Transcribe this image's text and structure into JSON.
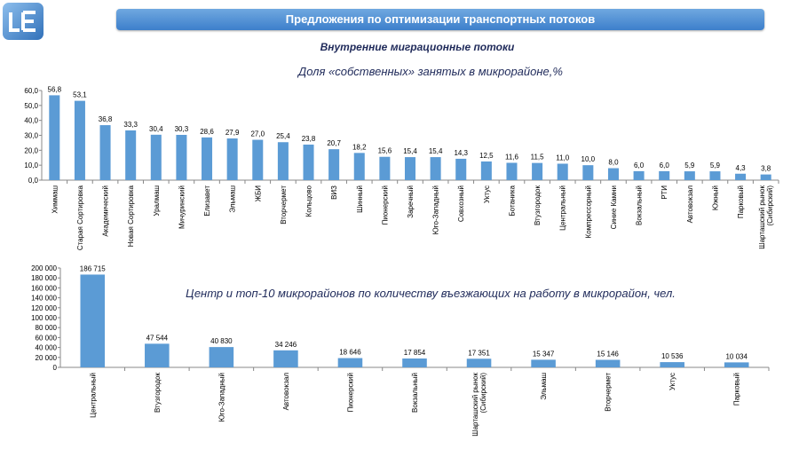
{
  "header": {
    "title": "Предложения по оптимизации транспортных потоков"
  },
  "subtitle": "Внутренние миграционные потоки",
  "chart_data": [
    {
      "type": "bar",
      "title": "Доля «собственных» занятых в микрорайоне,%",
      "categories": [
        "Химмаш",
        "Старая Сортировка",
        "Академический",
        "Новая Сортировка",
        "Уралмаш",
        "Мичуринский",
        "Елизавет",
        "Эльмаш",
        "ЖБИ",
        "Вторчермет",
        "Кольцово",
        "ВИЗ",
        "Шинный",
        "Пионерский",
        "Заречный",
        "Юго-Западный",
        "Совхозный",
        "Уктус",
        "Ботаника",
        "Втузгородок",
        "Центральный",
        "Компрессорный",
        "Синие Камни",
        "Вокзальный",
        "РТИ",
        "Автовокзал",
        "Южный",
        "Парковый",
        "Шарташский рынок (Сибирский)"
      ],
      "values": [
        56.8,
        53.1,
        36.8,
        33.3,
        30.4,
        30.3,
        28.6,
        27.9,
        27.0,
        25.4,
        23.8,
        20.7,
        18.2,
        15.6,
        15.4,
        15.4,
        14.3,
        12.5,
        11.6,
        11.5,
        11.0,
        10.0,
        8.0,
        6.0,
        6.0,
        5.9,
        5.9,
        4.3,
        3.8
      ],
      "value_labels": [
        "56,8",
        "53,1",
        "36,8",
        "33,3",
        "30,4",
        "30,3",
        "28,6",
        "27,9",
        "27,0",
        "25,4",
        "23,8",
        "20,7",
        "18,2",
        "15,6",
        "15,4",
        "15,4",
        "14,3",
        "12,5",
        "11,6",
        "11,5",
        "11,0",
        "10,0",
        "8,0",
        "6,0",
        "6,0",
        "5,9",
        "5,9",
        "4,3",
        "3,8"
      ],
      "ylim": [
        0,
        60
      ],
      "yticks": [
        "0,0",
        "10,0",
        "20,0",
        "30,0",
        "40,0",
        "50,0",
        "60,0"
      ],
      "bar_color": "#5b9bd5"
    },
    {
      "type": "bar",
      "title": "Центр и топ-10 микрорайонов по количеству въезжающих на работу в микрорайон, чел.",
      "categories": [
        "Центральный",
        "Втузгородок",
        "Юго-Западный",
        "Автовокзал",
        "Пионерский",
        "Вокзальный",
        "Шарташский рынок (Сибирский)",
        "Эльмаш",
        "Вторчермет",
        "Уктус",
        "Парковый"
      ],
      "values": [
        186715,
        47544,
        40830,
        34246,
        18646,
        17854,
        17351,
        15347,
        15146,
        10536,
        10034
      ],
      "value_labels": [
        "186 715",
        "47 544",
        "40 830",
        "34 246",
        "18 646",
        "17 854",
        "17 351",
        "15 347",
        "15 146",
        "10 536",
        "10 034"
      ],
      "ylim": [
        0,
        200000
      ],
      "yticks": [
        "0",
        "20 000",
        "40 000",
        "60 000",
        "80 000",
        "100 000",
        "120 000",
        "140 000",
        "160 000",
        "180 000",
        "200 000"
      ],
      "bar_color": "#5b9bd5"
    }
  ]
}
